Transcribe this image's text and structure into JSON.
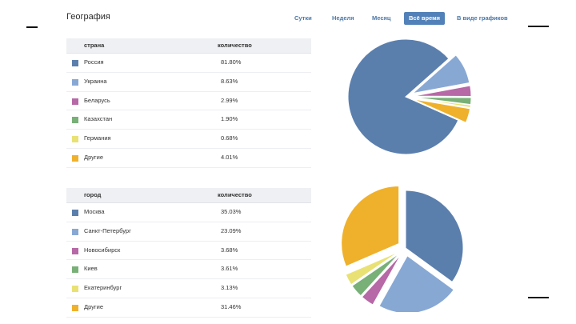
{
  "header": {
    "title": "География",
    "tabs": [
      {
        "label": "Сутки",
        "active": false
      },
      {
        "label": "Неделя",
        "active": false
      },
      {
        "label": "Месяц",
        "active": false
      },
      {
        "label": "Всё время",
        "active": true
      },
      {
        "label": "В виде графиков",
        "active": false
      }
    ]
  },
  "country_table": {
    "col_name": "страна",
    "col_value": "количество",
    "rows": [
      {
        "name": "Россия",
        "value": "81.80%",
        "color": "#5b7fad"
      },
      {
        "name": "Украина",
        "value": "8.63%",
        "color": "#88a8d4"
      },
      {
        "name": "Беларусь",
        "value": "2.99%",
        "color": "#b768a6"
      },
      {
        "name": "Казахстан",
        "value": "1.90%",
        "color": "#78b077"
      },
      {
        "name": "Германия",
        "value": "0.68%",
        "color": "#e9e173"
      },
      {
        "name": "Другие",
        "value": "4.01%",
        "color": "#efb12b"
      }
    ]
  },
  "city_table": {
    "col_name": "город",
    "col_value": "количество",
    "rows": [
      {
        "name": "Москва",
        "value": "35.03%",
        "color": "#5b7fad"
      },
      {
        "name": "Санкт-Петербург",
        "value": "23.09%",
        "color": "#88a8d4"
      },
      {
        "name": "Новосибирск",
        "value": "3.68%",
        "color": "#b768a6"
      },
      {
        "name": "Киев",
        "value": "3.61%",
        "color": "#78b077"
      },
      {
        "name": "Екатеринбург",
        "value": "3.13%",
        "color": "#e9e173"
      },
      {
        "name": "Другие",
        "value": "31.46%",
        "color": "#efb12b"
      }
    ]
  },
  "chart_data": [
    {
      "type": "pie",
      "categories": [
        "Россия",
        "Украина",
        "Беларусь",
        "Казахстан",
        "Германия",
        "Другие"
      ],
      "values": [
        81.8,
        8.63,
        2.99,
        1.9,
        0.68,
        4.01
      ],
      "colors": [
        "#5b7fad",
        "#88a8d4",
        "#b768a6",
        "#78b077",
        "#e9e173",
        "#efb12b"
      ],
      "exploded": true,
      "legend": "left table"
    },
    {
      "type": "pie",
      "categories": [
        "Москва",
        "Санкт-Петербург",
        "Новосибирск",
        "Киев",
        "Екатеринбург",
        "Другие"
      ],
      "values": [
        35.03,
        23.09,
        3.68,
        3.61,
        3.13,
        31.46
      ],
      "colors": [
        "#5b7fad",
        "#88a8d4",
        "#b768a6",
        "#78b077",
        "#e9e173",
        "#efb12b"
      ],
      "exploded": true,
      "legend": "left table"
    }
  ]
}
